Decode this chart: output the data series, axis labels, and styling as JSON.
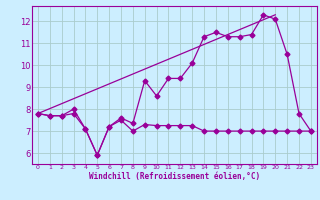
{
  "xlabel": "Windchill (Refroidissement éolien,°C)",
  "background_color": "#cceeff",
  "grid_color": "#aacccc",
  "line_color": "#990099",
  "xlim": [
    -0.5,
    23.5
  ],
  "ylim": [
    5.5,
    12.7
  ],
  "xticks": [
    0,
    1,
    2,
    3,
    4,
    5,
    6,
    7,
    8,
    9,
    10,
    11,
    12,
    13,
    14,
    15,
    16,
    17,
    18,
    19,
    20,
    21,
    22,
    23
  ],
  "yticks": [
    6,
    7,
    8,
    9,
    10,
    11,
    12
  ],
  "line1_x": [
    0,
    1,
    2,
    3,
    4,
    5,
    6,
    7,
    8,
    9,
    10,
    11,
    12,
    13,
    14,
    15,
    16,
    17,
    18,
    19,
    20,
    21,
    22,
    23
  ],
  "line1_y": [
    7.8,
    7.7,
    7.7,
    7.8,
    7.1,
    5.9,
    7.2,
    7.5,
    7.0,
    7.3,
    7.25,
    7.25,
    7.25,
    7.25,
    7.0,
    7.0,
    7.0,
    7.0,
    7.0,
    7.0,
    7.0,
    7.0,
    7.0,
    7.0
  ],
  "line2_x": [
    0,
    1,
    2,
    3,
    4,
    5,
    6,
    7,
    8,
    9,
    10,
    11,
    12,
    13,
    14,
    15,
    16,
    17,
    18,
    19,
    20,
    21,
    22,
    23
  ],
  "line2_y": [
    7.8,
    7.7,
    7.7,
    8.0,
    7.1,
    5.9,
    7.2,
    7.6,
    7.35,
    9.3,
    8.6,
    9.4,
    9.4,
    10.1,
    11.3,
    11.5,
    11.3,
    11.3,
    11.4,
    12.3,
    12.1,
    10.5,
    7.8,
    7.0
  ],
  "line3_x": [
    0,
    20
  ],
  "line3_y": [
    7.8,
    12.3
  ]
}
